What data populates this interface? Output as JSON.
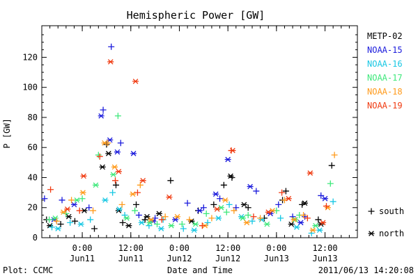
{
  "chart_data": {
    "type": "scatter",
    "title": "Hemispheric Power [GW]",
    "xlabel": "Date and Time",
    "ylabel": "P [GW]",
    "ylim": [
      0,
      140
    ],
    "xlim": [
      "2011-06-10T14:00",
      "2011-06-13T20:00"
    ],
    "y_ticks": [
      0,
      20,
      40,
      60,
      80,
      100,
      120
    ],
    "x_ticks": [
      {
        "t": "2011-06-11T00:00",
        "label1": "0:00",
        "label2": "Jun11"
      },
      {
        "t": "2011-06-11T12:00",
        "label1": "12:00",
        "label2": "Jun11"
      },
      {
        "t": "2011-06-12T00:00",
        "label1": "0:00",
        "label2": "Jun12"
      },
      {
        "t": "2011-06-12T12:00",
        "label1": "12:00",
        "label2": "Jun12"
      },
      {
        "t": "2011-06-13T00:00",
        "label1": "0:00",
        "label2": "Jun13"
      },
      {
        "t": "2011-06-13T12:00",
        "label1": "12:00",
        "label2": "Jun13"
      }
    ],
    "grid": false,
    "legend_position": "right",
    "series": [
      {
        "name": "METP-02",
        "color": "#000000",
        "south": [
          [
            "2011-06-10T15:10",
            12
          ],
          [
            "2011-06-10T18:40",
            9
          ],
          [
            "2011-06-10T22:10",
            11
          ],
          [
            "2011-06-11T03:00",
            6
          ],
          [
            "2011-06-11T06:00",
            62
          ],
          [
            "2011-06-11T08:20",
            35
          ],
          [
            "2011-06-11T10:00",
            10
          ],
          [
            "2011-06-11T13:20",
            22
          ],
          [
            "2011-06-11T15:30",
            12
          ],
          [
            "2011-06-11T21:50",
            38
          ],
          [
            "2011-06-12T04:40",
            18
          ],
          [
            "2011-06-12T08:30",
            22
          ],
          [
            "2011-06-12T11:00",
            35
          ],
          [
            "2011-06-12T13:00",
            40
          ],
          [
            "2011-06-12T17:00",
            20
          ],
          [
            "2011-06-12T21:00",
            13
          ],
          [
            "2011-06-13T01:30",
            25
          ],
          [
            "2011-06-13T02:20",
            31
          ],
          [
            "2011-06-13T06:20",
            22
          ],
          [
            "2011-06-13T10:20",
            12
          ],
          [
            "2011-06-13T13:40",
            48
          ]
        ],
        "north": [
          [
            "2011-06-10T16:00",
            8
          ],
          [
            "2011-06-10T20:40",
            14
          ],
          [
            "2011-06-11T00:30",
            18
          ],
          [
            "2011-06-11T05:00",
            47
          ],
          [
            "2011-06-11T06:30",
            56
          ],
          [
            "2011-06-11T09:00",
            18
          ],
          [
            "2011-06-11T11:30",
            8
          ],
          [
            "2011-06-11T16:00",
            14
          ],
          [
            "2011-06-11T19:00",
            16
          ],
          [
            "2011-06-12T03:00",
            11
          ],
          [
            "2011-06-12T12:40",
            41
          ],
          [
            "2011-06-12T16:00",
            22
          ],
          [
            "2011-06-13T03:40",
            9
          ],
          [
            "2011-06-13T07:00",
            23
          ],
          [
            "2011-06-13T11:00",
            9
          ]
        ]
      },
      {
        "name": "NOAA-15",
        "color": "#1a1adc",
        "south": [
          [
            "2011-06-10T14:40",
            26
          ],
          [
            "2011-06-10T19:00",
            25
          ],
          [
            "2011-06-11T01:40",
            20
          ],
          [
            "2011-06-11T05:10",
            85
          ],
          [
            "2011-06-11T07:10",
            127
          ],
          [
            "2011-06-11T09:30",
            63
          ],
          [
            "2011-06-11T14:00",
            15
          ],
          [
            "2011-06-11T18:00",
            13
          ],
          [
            "2011-06-12T02:00",
            23
          ],
          [
            "2011-06-12T06:00",
            20
          ],
          [
            "2011-06-12T10:00",
            26
          ],
          [
            "2011-06-12T14:00",
            20
          ],
          [
            "2011-06-12T19:00",
            31
          ],
          [
            "2011-06-13T00:30",
            22
          ],
          [
            "2011-06-13T04:00",
            14
          ],
          [
            "2011-06-13T07:00",
            14
          ],
          [
            "2011-06-13T11:00",
            28
          ]
        ],
        "north": [
          [
            "2011-06-10T17:00",
            12
          ],
          [
            "2011-06-10T22:00",
            22
          ],
          [
            "2011-06-11T04:40",
            81
          ],
          [
            "2011-06-11T06:50",
            65
          ],
          [
            "2011-06-11T08:40",
            57
          ],
          [
            "2011-06-11T12:40",
            56
          ],
          [
            "2011-06-11T17:30",
            11
          ],
          [
            "2011-06-11T23:00",
            12
          ],
          [
            "2011-06-12T05:00",
            18
          ],
          [
            "2011-06-12T09:00",
            29
          ],
          [
            "2011-06-12T12:00",
            52
          ],
          [
            "2011-06-12T17:30",
            34
          ],
          [
            "2011-06-12T22:30",
            16
          ],
          [
            "2011-06-13T06:00",
            10
          ],
          [
            "2011-06-13T12:00",
            26
          ]
        ]
      },
      {
        "name": "NOAA-16",
        "color": "#17c7e3",
        "south": [
          [
            "2011-06-10T16:30",
            7
          ],
          [
            "2011-06-10T21:00",
            10
          ],
          [
            "2011-06-11T02:00",
            12
          ],
          [
            "2011-06-11T07:30",
            30
          ],
          [
            "2011-06-11T10:30",
            15
          ],
          [
            "2011-06-11T16:30",
            8
          ],
          [
            "2011-06-11T20:00",
            12
          ],
          [
            "2011-06-12T01:00",
            6
          ],
          [
            "2011-06-12T07:00",
            10
          ],
          [
            "2011-06-12T12:20",
            22
          ],
          [
            "2011-06-12T18:00",
            11
          ],
          [
            "2011-06-13T01:00",
            13
          ],
          [
            "2011-06-13T08:40",
            3
          ],
          [
            "2011-06-13T14:00",
            24
          ]
        ],
        "north": [
          [
            "2011-06-10T18:00",
            6
          ],
          [
            "2011-06-10T23:40",
            9
          ],
          [
            "2011-06-11T05:40",
            25
          ],
          [
            "2011-06-11T09:10",
            19
          ],
          [
            "2011-06-11T14:40",
            10
          ],
          [
            "2011-06-11T19:30",
            6
          ],
          [
            "2011-06-12T03:40",
            5
          ],
          [
            "2011-06-12T09:40",
            13
          ],
          [
            "2011-06-12T15:20",
            14
          ],
          [
            "2011-06-12T20:20",
            12
          ],
          [
            "2011-06-13T05:00",
            7
          ],
          [
            "2011-06-13T10:40",
            5
          ]
        ]
      },
      {
        "name": "NOAA-17",
        "color": "#3de87a",
        "south": [
          [
            "2011-06-10T15:50",
            12
          ],
          [
            "2011-06-10T20:00",
            16
          ],
          [
            "2011-06-11T00:00",
            26
          ],
          [
            "2011-06-11T04:00",
            55
          ],
          [
            "2011-06-11T08:50",
            81
          ],
          [
            "2011-06-11T13:00",
            18
          ],
          [
            "2011-06-11T18:30",
            9
          ],
          [
            "2011-06-12T00:40",
            9
          ],
          [
            "2011-06-12T06:40",
            16
          ],
          [
            "2011-06-12T11:40",
            17
          ],
          [
            "2011-06-12T17:00",
            15
          ],
          [
            "2011-06-13T00:00",
            18
          ],
          [
            "2011-06-13T05:40",
            15
          ],
          [
            "2011-06-13T13:20",
            36
          ]
        ],
        "north": [
          [
            "2011-06-10T17:20",
            13
          ],
          [
            "2011-06-10T22:40",
            25
          ],
          [
            "2011-06-11T03:20",
            35
          ],
          [
            "2011-06-11T07:40",
            42
          ],
          [
            "2011-06-11T11:00",
            13
          ],
          [
            "2011-06-11T16:40",
            10
          ],
          [
            "2011-06-11T22:00",
            8
          ],
          [
            "2011-06-12T04:00",
            9
          ],
          [
            "2011-06-12T10:20",
            20
          ],
          [
            "2011-06-12T15:40",
            13
          ],
          [
            "2011-06-12T21:40",
            9
          ],
          [
            "2011-06-13T04:40",
            12
          ],
          [
            "2011-06-13T09:40",
            8
          ]
        ]
      },
      {
        "name": "NOAA-18",
        "color": "#ff9a1a",
        "south": [
          [
            "2011-06-10T17:40",
            11
          ],
          [
            "2011-06-10T21:20",
            25
          ],
          [
            "2011-06-11T02:40",
            18
          ],
          [
            "2011-06-11T06:20",
            63
          ],
          [
            "2011-06-11T09:50",
            22
          ],
          [
            "2011-06-11T14:20",
            35
          ],
          [
            "2011-06-11T20:30",
            14
          ],
          [
            "2011-06-12T02:30",
            12
          ],
          [
            "2011-06-12T08:00",
            13
          ],
          [
            "2011-06-12T13:30",
            18
          ],
          [
            "2011-06-12T20:00",
            13
          ],
          [
            "2011-06-13T02:00",
            25
          ],
          [
            "2011-06-13T06:40",
            15
          ],
          [
            "2011-06-13T14:20",
            55
          ]
        ],
        "north": [
          [
            "2011-06-10T19:20",
            17
          ],
          [
            "2011-06-11T00:10",
            30
          ],
          [
            "2011-06-11T05:30",
            63
          ],
          [
            "2011-06-11T08:00",
            47
          ],
          [
            "2011-06-11T12:30",
            29
          ],
          [
            "2011-06-11T17:00",
            12
          ],
          [
            "2011-06-11T23:30",
            14
          ],
          [
            "2011-06-12T06:20",
            8
          ],
          [
            "2011-06-12T11:20",
            25
          ],
          [
            "2011-06-12T16:40",
            10
          ],
          [
            "2011-06-12T23:00",
            18
          ],
          [
            "2011-06-13T04:20",
            12
          ],
          [
            "2011-06-13T09:00",
            5
          ],
          [
            "2011-06-13T12:40",
            20
          ]
        ]
      },
      {
        "name": "NOAA-19",
        "color": "#f03a10",
        "south": [
          [
            "2011-06-10T16:10",
            32
          ],
          [
            "2011-06-10T23:20",
            18
          ],
          [
            "2011-06-11T04:20",
            54
          ],
          [
            "2011-06-11T08:10",
            38
          ],
          [
            "2011-06-11T13:40",
            30
          ],
          [
            "2011-06-11T19:40",
            12
          ],
          [
            "2011-06-12T05:40",
            8
          ],
          [
            "2011-06-12T12:50",
            58
          ],
          [
            "2011-06-12T18:20",
            14
          ],
          [
            "2011-06-13T01:20",
            30
          ],
          [
            "2011-06-13T07:40",
            13
          ],
          [
            "2011-06-13T12:20",
            21
          ]
        ],
        "north": [
          [
            "2011-06-10T20:20",
            19
          ],
          [
            "2011-06-11T00:20",
            41
          ],
          [
            "2011-06-11T07:00",
            117
          ],
          [
            "2011-06-11T09:00",
            44
          ],
          [
            "2011-06-11T13:10",
            104
          ],
          [
            "2011-06-11T15:00",
            38
          ],
          [
            "2011-06-11T21:30",
            27
          ],
          [
            "2011-06-12T09:20",
            19
          ],
          [
            "2011-06-12T13:10",
            58
          ],
          [
            "2011-06-12T22:00",
            17
          ],
          [
            "2011-06-13T03:00",
            26
          ],
          [
            "2011-06-13T08:20",
            43
          ],
          [
            "2011-06-13T11:30",
            10
          ]
        ]
      }
    ]
  },
  "legend": {
    "markers": [
      {
        "symbol": "+",
        "label": "south"
      },
      {
        "symbol": "*",
        "label": "north"
      }
    ]
  },
  "footer": {
    "left": "Plot: CCMC",
    "right": "2011/06/13 14:20:08"
  }
}
